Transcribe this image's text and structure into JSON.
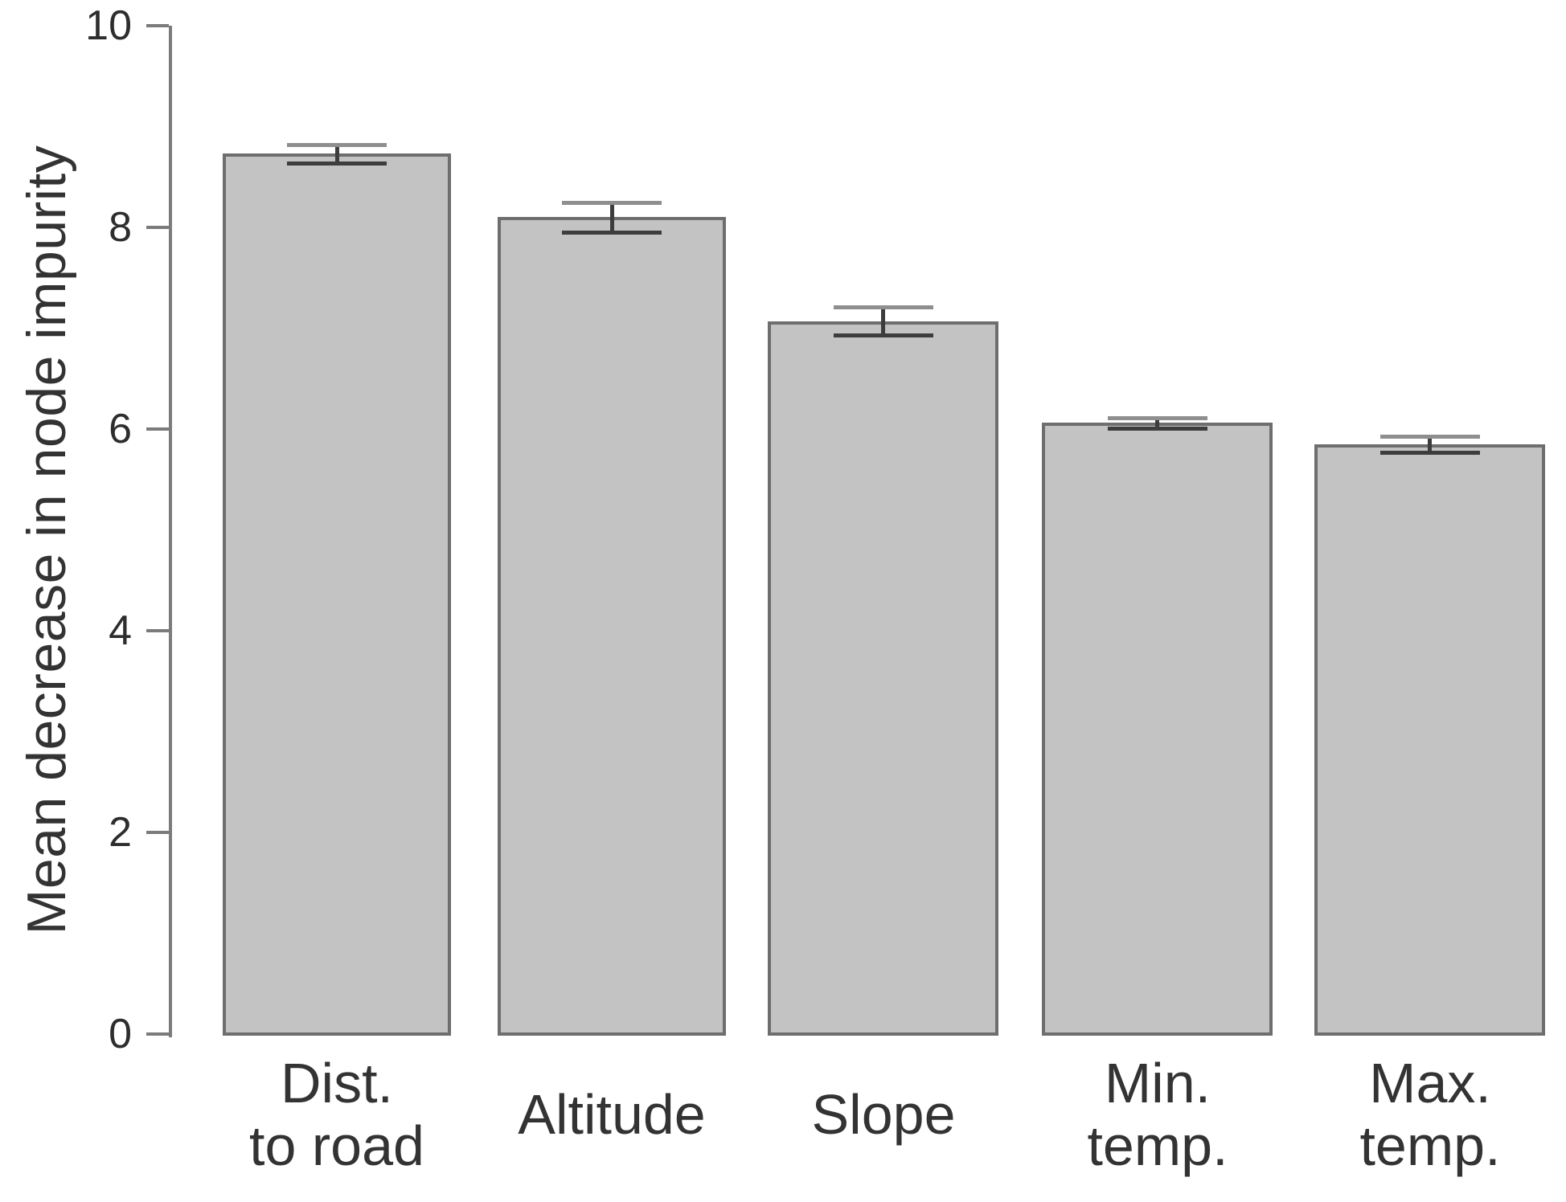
{
  "page": {
    "background_color": "#ffffff"
  },
  "chart_data": {
    "type": "bar",
    "title": "",
    "xlabel": "",
    "ylabel": "Mean decrease in node impurity",
    "ylim": [
      0,
      10
    ],
    "yticks": [
      0,
      2,
      4,
      6,
      8,
      10
    ],
    "grid": false,
    "legend_position": "none",
    "categories": [
      "Dist. to road",
      "Altitude",
      "Slope",
      "Min. temp.",
      "Max. temp."
    ],
    "category_lines": [
      [
        "Dist.",
        "to road"
      ],
      [
        "Altitude"
      ],
      [
        "Slope"
      ],
      [
        "Min.",
        "temp."
      ],
      [
        "Max.",
        "temp."
      ]
    ],
    "series": [
      {
        "name": "Mean decrease in node impurity",
        "values": [
          8.73,
          8.1,
          7.07,
          6.06,
          5.85
        ],
        "errors": [
          0.09,
          0.15,
          0.14,
          0.05,
          0.08
        ]
      }
    ],
    "colors": {
      "bar_fill": "#c3c3c3",
      "bar_border": "#6e6e6e",
      "axis": "#7b7b7b",
      "tick_text": "#2d2d2d",
      "label_text": "#333333",
      "error_bar": "#3d3d3d",
      "error_cap_top": "#8f8f8f"
    }
  }
}
